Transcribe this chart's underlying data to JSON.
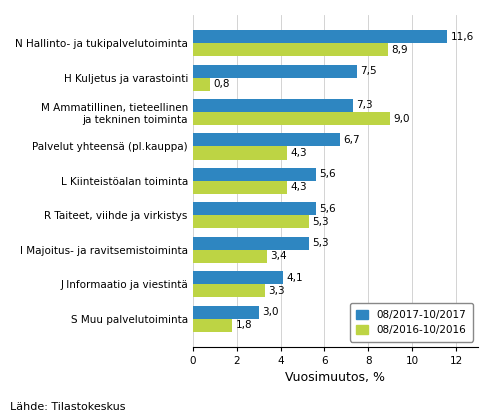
{
  "categories_display": [
    "N Hallinto- ja tukipalvelutoiminta",
    "H Kuljetus ja varastointi",
    "M Ammatillinen, tieteellinen\nja tekninen toiminta",
    "Palvelut yhteensä (pl.kauppa)",
    "L Kiinteistöalan toiminta",
    "R Taiteet, viihde ja virkistys",
    "I Majoitus- ja ravitsemistoiminta",
    "J Informaatio ja viestintä",
    "S Muu palvelutoiminta"
  ],
  "values_2017": [
    11.6,
    7.5,
    7.3,
    6.7,
    5.6,
    5.6,
    5.3,
    4.1,
    3.0
  ],
  "values_2016": [
    8.9,
    0.8,
    9.0,
    4.3,
    4.3,
    5.3,
    3.4,
    3.3,
    1.8
  ],
  "color_2017": "#2E86C1",
  "color_2016": "#BDD444",
  "legend_2017": "08/2017-10/2017",
  "legend_2016": "08/2016-10/2016",
  "xlabel": "Vuosimuutos, %",
  "xlim": [
    0,
    13
  ],
  "xticks": [
    0,
    2,
    4,
    6,
    8,
    10,
    12
  ],
  "footnote": "Lähde: Tilastokeskus",
  "bar_height": 0.38,
  "label_fontsize": 7.5,
  "tick_fontsize": 7.5,
  "xlabel_fontsize": 9,
  "legend_fontsize": 7.5,
  "footnote_fontsize": 8
}
